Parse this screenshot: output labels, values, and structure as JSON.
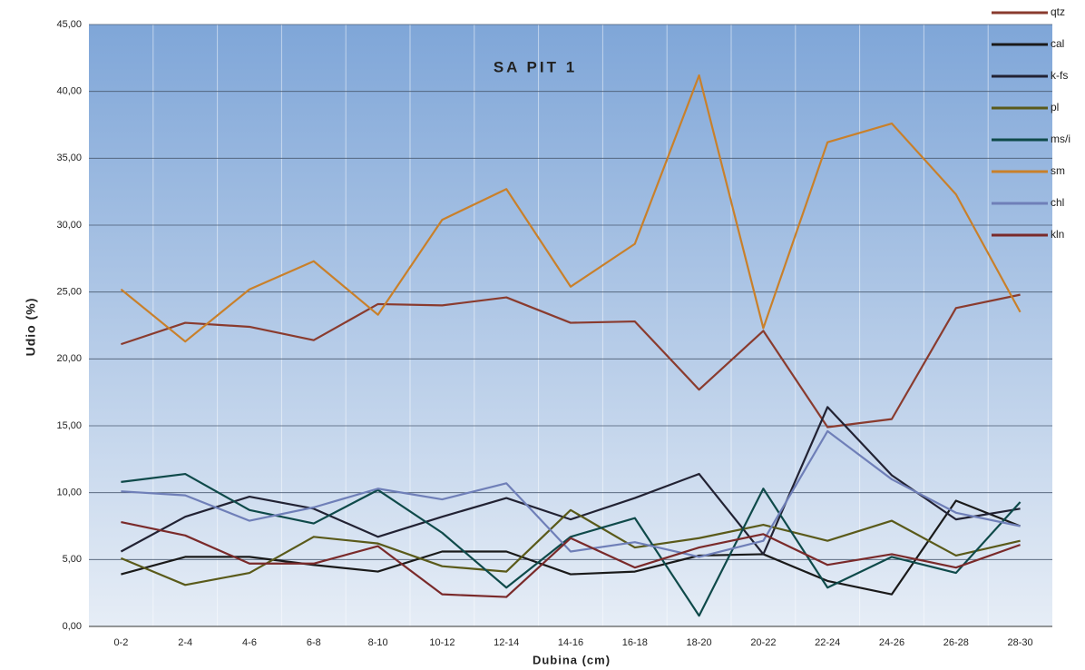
{
  "chart_data": {
    "type": "line",
    "title": "SA PIT 1",
    "x_label": "Dubina (cm)",
    "y_label": "Udio (%)",
    "categories": [
      "0-2",
      "2-4",
      "4-6",
      "6-8",
      "8-10",
      "10-12",
      "12-14",
      "14-16",
      "16-18",
      "18-20",
      "20-22",
      "22-24",
      "24-26",
      "26-28",
      "28-30"
    ],
    "series": [
      {
        "name": "qtz",
        "color": "#8a3b2e",
        "values": [
          21.1,
          22.7,
          22.4,
          21.4,
          24.1,
          24.0,
          24.6,
          22.7,
          22.8,
          17.7,
          22.1,
          14.9,
          15.5,
          23.8,
          24.8
        ]
      },
      {
        "name": "cal",
        "color": "#1a1a1a",
        "values": [
          3.9,
          5.2,
          5.2,
          4.6,
          4.1,
          5.6,
          5.6,
          3.9,
          4.1,
          5.3,
          5.4,
          3.4,
          2.4,
          9.4,
          7.5
        ]
      },
      {
        "name": "k-fs",
        "color": "#222233",
        "values": [
          5.6,
          8.2,
          9.7,
          8.8,
          6.7,
          8.2,
          9.6,
          8.0,
          9.6,
          11.4,
          5.4,
          16.4,
          11.3,
          8.0,
          8.8
        ]
      },
      {
        "name": "pl",
        "color": "#5a5a1a",
        "values": [
          5.1,
          3.1,
          4.0,
          6.7,
          6.2,
          4.5,
          4.1,
          8.7,
          5.9,
          6.6,
          7.6,
          6.4,
          7.9,
          5.3,
          6.4
        ]
      },
      {
        "name": "ms/i",
        "color": "#0f4a4a",
        "values": [
          10.8,
          11.4,
          8.7,
          7.7,
          10.2,
          7.0,
          2.9,
          6.7,
          8.1,
          0.8,
          10.3,
          2.9,
          5.2,
          4.0,
          9.3
        ]
      },
      {
        "name": "sm",
        "color": "#c9802a",
        "values": [
          25.2,
          21.3,
          25.2,
          27.3,
          23.3,
          30.4,
          32.7,
          25.4,
          28.6,
          41.2,
          22.3,
          36.2,
          37.6,
          32.3,
          23.5
        ]
      },
      {
        "name": "chl",
        "color": "#6f7fb8",
        "values": [
          10.1,
          9.8,
          7.9,
          8.9,
          10.3,
          9.5,
          10.7,
          5.6,
          6.3,
          5.2,
          6.4,
          14.6,
          11.0,
          8.5,
          7.5
        ]
      },
      {
        "name": "kln",
        "color": "#7a2a2a",
        "values": [
          7.8,
          6.8,
          4.7,
          4.7,
          6.0,
          2.4,
          2.2,
          6.6,
          4.4,
          5.9,
          6.9,
          4.6,
          5.4,
          4.4,
          6.1
        ]
      }
    ],
    "ylim": [
      0,
      45
    ],
    "yticks": [
      {
        "value": 0,
        "label": "0,00"
      },
      {
        "value": 5,
        "label": "5,00"
      },
      {
        "value": 10,
        "label": "10,00"
      },
      {
        "value": 15,
        "label": "15,00"
      },
      {
        "value": 20,
        "label": "20,00"
      },
      {
        "value": 25,
        "label": "25,00"
      },
      {
        "value": 30,
        "label": "30,00"
      },
      {
        "value": 35,
        "label": "35,00"
      },
      {
        "value": 40,
        "label": "40,00"
      },
      {
        "value": 45,
        "label": "45,00"
      }
    ],
    "grid": true,
    "legend": "upper right"
  }
}
